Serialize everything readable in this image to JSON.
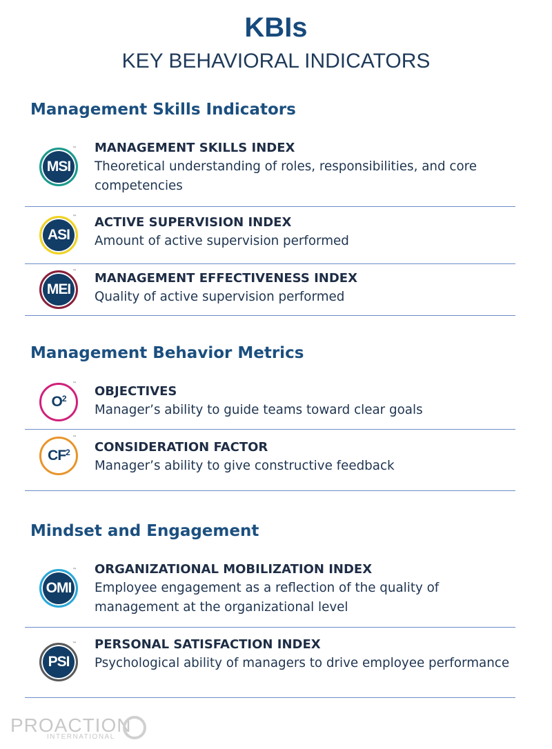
{
  "header": {
    "title": "KBIs",
    "subtitle": "KEY BEHAVIORAL INDICATORS"
  },
  "trademark": "™",
  "sections": [
    {
      "heading": "Management Skills Indicators",
      "items": [
        {
          "icon": {
            "text": "MSI"
          },
          "ring": "#1a9a8c",
          "title": "MANAGEMENT SKILLS INDEX",
          "description": "Theoretical understanding of roles, responsibilities, and core competencies"
        },
        {
          "icon": {
            "text": "ASI"
          },
          "ring": "#f2d422",
          "title": "ACTIVE SUPERVISION INDEX",
          "description": "Amount of active supervision performed"
        },
        {
          "icon": {
            "text": "MEI"
          },
          "ring": "#8a1f3a",
          "title": "MANAGEMENT EFFECTIVENESS INDEX",
          "description": "Quality of active supervision performed"
        }
      ]
    },
    {
      "heading": "Management Behavior Metrics",
      "items": [
        {
          "icon": {
            "text": "O",
            "sup": "2"
          },
          "ring": "#d0207a",
          "title": "OBJECTIVES",
          "description": "Manager’s ability to guide teams toward clear goals"
        },
        {
          "icon": {
            "text": "CF",
            "sup": "2"
          },
          "ring": "#e8942a",
          "title": "CONSIDERATION FACTOR",
          "description": "Manager’s ability to give constructive feedback"
        }
      ]
    },
    {
      "heading": "Mindset and Engagement",
      "items": [
        {
          "icon": {
            "text": "OMI"
          },
          "ring": "#2aa8d8",
          "title": "ORGANIZATIONAL MOBILIZATION INDEX",
          "description": "Employee engagement as a reflection of the quality of management at the organizational level"
        },
        {
          "icon": {
            "text": "PSI"
          },
          "ring": "#5a5a5a",
          "title": "PERSONAL SATISFACTION INDEX",
          "description": "Psychological ability of managers to drive employee performance"
        }
      ]
    }
  ],
  "footer": {
    "brand": "PROACTION",
    "tagline": "INTERNATIONAL"
  }
}
